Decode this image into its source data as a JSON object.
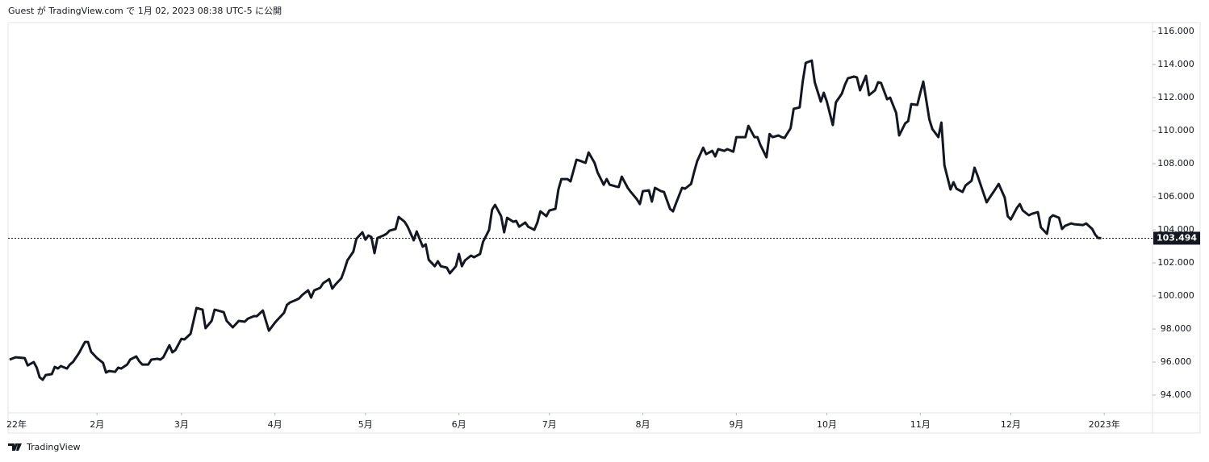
{
  "header": "Guest が TradingView.com で 1月 02, 2023 08:38 UTC-5 に公開",
  "footer": "TradingView",
  "chart_data": {
    "type": "line",
    "x": [
      2,
      4,
      7,
      8,
      10,
      11,
      12,
      13,
      14,
      16,
      17,
      18,
      19,
      21,
      22,
      23,
      25,
      27,
      28,
      29,
      31,
      33,
      34,
      35,
      37,
      38,
      39,
      41,
      42,
      44,
      45,
      46,
      48,
      49,
      51,
      52,
      53,
      55,
      56,
      57,
      59,
      60,
      62,
      63,
      64,
      66,
      67,
      69,
      70,
      71,
      73,
      74,
      76,
      77,
      78,
      80,
      81,
      83,
      84,
      86,
      87,
      88,
      90,
      91,
      93,
      94,
      95,
      97,
      98,
      99,
      101,
      102,
      103,
      105,
      106,
      108,
      109,
      110,
      112,
      113,
      114,
      116,
      117,
      119,
      120,
      121,
      122,
      123,
      124,
      126,
      127,
      128,
      130,
      131,
      133,
      134,
      136,
      137,
      139,
      140,
      141,
      143,
      144,
      145,
      147,
      148,
      150,
      151,
      152,
      153,
      155,
      156,
      158,
      159,
      161,
      162,
      163,
      165,
      166,
      167,
      169,
      170,
      171,
      173,
      174,
      176,
      177,
      178,
      180,
      181,
      183,
      184,
      185,
      187,
      188,
      190,
      191,
      193,
      194,
      196,
      197,
      199,
      200,
      201,
      203,
      204,
      205,
      207,
      208,
      210,
      211,
      212,
      214,
      215,
      216,
      218,
      219,
      221,
      222,
      223,
      225,
      226,
      228,
      229,
      230,
      232,
      233,
      235,
      236,
      237,
      239,
      240,
      242,
      243,
      244,
      246,
      247,
      249,
      250,
      251,
      253,
      254,
      255,
      257,
      258,
      259,
      261,
      262,
      264,
      265,
      266,
      268,
      269,
      271,
      272,
      273,
      275,
      276,
      278,
      279,
      280,
      282,
      283,
      284,
      286,
      287,
      289,
      290,
      291,
      293,
      294,
      296,
      297,
      299,
      300,
      301,
      303,
      304,
      305,
      307,
      308,
      310,
      311,
      312,
      314,
      315,
      316,
      318,
      319,
      321,
      322,
      323,
      325,
      326,
      327,
      329,
      330,
      332,
      333,
      334,
      336,
      337,
      338,
      340,
      341,
      343,
      344,
      346,
      347,
      348,
      350,
      351,
      352,
      354,
      355,
      358,
      359,
      361,
      362,
      363,
      364
    ],
    "series": [
      {
        "color": "#131722",
        "values": [
          96.15,
          96.29,
          96.24,
          95.8,
          96.0,
          95.66,
          95.07,
          94.93,
          95.22,
          95.27,
          95.71,
          95.61,
          95.76,
          95.61,
          95.85,
          96.0,
          96.54,
          97.22,
          97.22,
          96.63,
          96.24,
          95.95,
          95.37,
          95.46,
          95.41,
          95.66,
          95.61,
          95.85,
          96.15,
          96.34,
          96.05,
          95.85,
          95.85,
          96.15,
          96.2,
          96.15,
          96.29,
          97.02,
          96.59,
          96.73,
          97.41,
          97.37,
          97.71,
          98.49,
          99.27,
          99.17,
          98.05,
          98.49,
          99.17,
          99.12,
          99.02,
          98.49,
          98.1,
          98.29,
          98.49,
          98.44,
          98.63,
          98.78,
          98.78,
          99.12,
          98.49,
          97.9,
          98.39,
          98.59,
          98.98,
          99.46,
          99.61,
          99.76,
          99.85,
          100.05,
          100.34,
          99.9,
          100.34,
          100.49,
          100.78,
          101.02,
          100.44,
          100.68,
          101.07,
          101.56,
          102.15,
          102.68,
          103.46,
          103.85,
          103.41,
          103.66,
          103.56,
          102.59,
          103.51,
          103.66,
          103.76,
          103.95,
          104.05,
          104.78,
          104.49,
          104.19,
          103.37,
          103.9,
          102.98,
          103.12,
          102.19,
          101.8,
          102.1,
          101.8,
          101.71,
          101.37,
          101.8,
          102.54,
          101.8,
          102.15,
          102.44,
          102.34,
          102.54,
          103.27,
          104.0,
          105.22,
          105.51,
          104.83,
          103.85,
          104.73,
          104.49,
          104.54,
          104.19,
          104.44,
          104.19,
          104.0,
          104.44,
          105.12,
          104.83,
          105.17,
          105.27,
          106.44,
          107.07,
          107.07,
          106.93,
          108.24,
          108.19,
          108.05,
          108.68,
          108.05,
          107.46,
          106.73,
          107.07,
          106.73,
          106.63,
          106.59,
          107.22,
          106.54,
          106.29,
          105.85,
          105.56,
          106.34,
          106.39,
          105.71,
          106.54,
          106.34,
          106.29,
          105.27,
          105.12,
          105.61,
          106.54,
          106.49,
          106.78,
          107.51,
          108.15,
          108.97,
          108.58,
          108.78,
          108.44,
          108.88,
          108.78,
          108.88,
          108.73,
          109.61,
          109.61,
          109.61,
          110.29,
          109.61,
          109.61,
          109.12,
          108.39,
          109.8,
          109.61,
          109.71,
          109.61,
          109.56,
          110.15,
          111.32,
          111.41,
          112.97,
          114.1,
          114.24,
          112.93,
          111.76,
          112.29,
          111.76,
          110.34,
          111.71,
          112.24,
          112.78,
          113.17,
          113.27,
          113.22,
          112.44,
          113.32,
          112.15,
          112.44,
          112.93,
          112.88,
          111.9,
          112.0,
          111.07,
          109.71,
          110.44,
          110.58,
          111.61,
          111.56,
          112.29,
          112.97,
          110.68,
          110.1,
          109.61,
          110.49,
          107.9,
          106.44,
          106.88,
          106.49,
          106.29,
          106.68,
          106.97,
          107.76,
          107.27,
          106.19,
          105.66,
          105.95,
          106.49,
          106.78,
          105.95,
          104.83,
          104.63,
          105.32,
          105.56,
          105.17,
          104.88,
          104.97,
          105.07,
          104.15,
          103.76,
          104.73,
          104.88,
          104.73,
          104.05,
          104.24,
          104.39,
          104.34,
          104.29,
          104.39,
          104.05,
          103.71,
          103.51,
          103.494
        ]
      }
    ],
    "xlim": [
      1.5,
      381
    ],
    "xticks": [
      {
        "value": 0,
        "label": "22年"
      },
      {
        "value": 31,
        "label": "2月"
      },
      {
        "value": 59,
        "label": "3月"
      },
      {
        "value": 90,
        "label": "4月"
      },
      {
        "value": 120,
        "label": "5月"
      },
      {
        "value": 151,
        "label": "6月"
      },
      {
        "value": 181,
        "label": "7月"
      },
      {
        "value": 212,
        "label": "8月"
      },
      {
        "value": 243,
        "label": "9月"
      },
      {
        "value": 273,
        "label": "10月"
      },
      {
        "value": 304,
        "label": "11月"
      },
      {
        "value": 334,
        "label": "12月"
      },
      {
        "value": 365,
        "label": "2023年"
      }
    ],
    "ylim": [
      92.93,
      116.54
    ],
    "yticks": [
      {
        "value": 94,
        "label": "94.000"
      },
      {
        "value": 96,
        "label": "96.000"
      },
      {
        "value": 98,
        "label": "98.000"
      },
      {
        "value": 100,
        "label": "100.000"
      },
      {
        "value": 102,
        "label": "102.000"
      },
      {
        "value": 104,
        "label": "104.000"
      },
      {
        "value": 106,
        "label": "106.000"
      },
      {
        "value": 108,
        "label": "108.000"
      },
      {
        "value": 110,
        "label": "110.000"
      },
      {
        "value": 112,
        "label": "112.000"
      },
      {
        "value": 114,
        "label": "114.000"
      },
      {
        "value": 116,
        "label": "116.000"
      }
    ],
    "grid": false
  }
}
